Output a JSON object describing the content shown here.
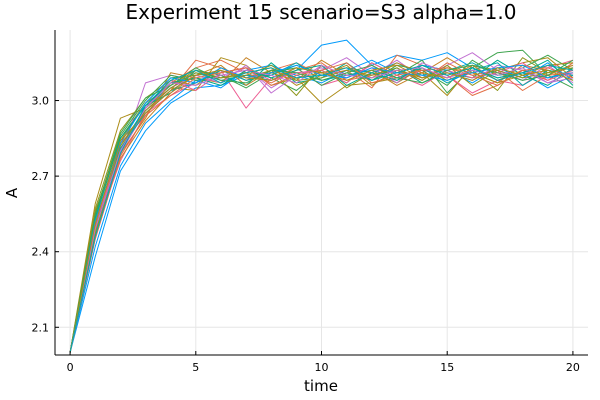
{
  "chart_data": {
    "type": "line",
    "title": "Experiment 15  scenario=S3  alpha=1.0",
    "xlabel": "time",
    "ylabel": "A",
    "xlim": [
      -0.6,
      20.6
    ],
    "ylim": [
      1.99,
      3.28
    ],
    "xticks": [
      0,
      5,
      10,
      15,
      20
    ],
    "yticks": [
      2.1,
      2.4,
      2.7,
      3.0
    ],
    "ytick_labels": [
      "2.1",
      "2.4",
      "2.7",
      "3.0"
    ],
    "grid": true,
    "legend": "none",
    "x": [
      0,
      1,
      2,
      3,
      4,
      5,
      6,
      7,
      8,
      9,
      10,
      11,
      12,
      13,
      14,
      15,
      16,
      17,
      18,
      19,
      20
    ],
    "palette": [
      "#009AFA",
      "#E26F46",
      "#3EA44E",
      "#C271D2",
      "#AC8D18",
      "#00A9AD",
      "#ED5E93",
      "#C68225",
      "#00A98D",
      "#8E971E"
    ],
    "series": [
      {
        "color": "#009AFA",
        "values": [
          2.0,
          2.38,
          2.72,
          2.88,
          2.99,
          3.05,
          3.06,
          3.1,
          3.08,
          3.12,
          3.22,
          3.24,
          3.14,
          3.18,
          3.16,
          3.19,
          3.13,
          3.09,
          3.11,
          3.05,
          3.1
        ]
      },
      {
        "color": "#E26F46",
        "values": [
          2.0,
          2.52,
          2.81,
          2.96,
          3.04,
          3.16,
          3.13,
          3.08,
          3.12,
          3.15,
          3.1,
          3.12,
          3.05,
          3.18,
          3.14,
          3.1,
          3.02,
          3.06,
          3.12,
          3.08,
          3.15
        ]
      },
      {
        "color": "#3EA44E",
        "values": [
          2.0,
          2.55,
          2.85,
          2.99,
          3.09,
          3.1,
          3.11,
          3.13,
          3.09,
          3.04,
          3.12,
          3.07,
          3.15,
          3.1,
          3.16,
          3.03,
          3.13,
          3.19,
          3.2,
          3.1,
          3.05
        ]
      },
      {
        "color": "#C271D2",
        "values": [
          2.0,
          2.45,
          2.78,
          3.07,
          3.1,
          3.08,
          3.09,
          3.13,
          3.05,
          3.11,
          3.12,
          3.17,
          3.1,
          3.16,
          3.09,
          3.14,
          3.19,
          3.12,
          3.08,
          3.14,
          3.07
        ]
      },
      {
        "color": "#AC8D18",
        "values": [
          2.0,
          2.59,
          2.93,
          2.97,
          3.05,
          3.04,
          3.17,
          3.14,
          3.06,
          3.09,
          2.99,
          3.06,
          3.07,
          3.09,
          3.11,
          3.02,
          3.14,
          3.12,
          3.15,
          3.17,
          3.09
        ]
      },
      {
        "color": "#00A9AD",
        "values": [
          2.0,
          2.5,
          2.82,
          2.97,
          3.06,
          3.11,
          3.08,
          3.1,
          3.1,
          3.14,
          3.11,
          3.13,
          3.11,
          3.15,
          3.1,
          3.12,
          3.15,
          3.1,
          3.11,
          3.09,
          3.12
        ]
      },
      {
        "color": "#ED5E93",
        "values": [
          2.0,
          2.48,
          2.76,
          2.95,
          3.02,
          3.07,
          3.12,
          2.97,
          3.09,
          3.13,
          3.06,
          3.09,
          3.14,
          3.08,
          3.12,
          3.1,
          3.03,
          3.08,
          3.06,
          3.13,
          3.16
        ]
      },
      {
        "color": "#C68225",
        "values": [
          2.0,
          2.53,
          2.79,
          2.93,
          3.11,
          3.09,
          3.07,
          3.17,
          3.11,
          3.08,
          3.16,
          3.1,
          3.12,
          3.06,
          3.11,
          3.17,
          3.11,
          3.07,
          3.14,
          3.12,
          3.1
        ]
      },
      {
        "color": "#00A98D",
        "values": [
          2.0,
          2.47,
          2.8,
          2.98,
          3.03,
          3.12,
          3.1,
          3.06,
          3.15,
          3.07,
          3.09,
          3.15,
          3.08,
          3.13,
          3.07,
          3.11,
          3.09,
          3.16,
          3.1,
          3.06,
          3.13
        ]
      },
      {
        "color": "#8E971E",
        "values": [
          2.0,
          2.57,
          2.88,
          3.01,
          3.08,
          3.06,
          3.13,
          3.09,
          3.12,
          3.02,
          3.14,
          3.05,
          3.11,
          3.07,
          3.13,
          3.08,
          3.12,
          3.04,
          3.17,
          3.11,
          3.14
        ]
      },
      {
        "color": "#009AFA",
        "values": [
          2.0,
          2.42,
          2.74,
          2.91,
          3.0,
          3.08,
          3.05,
          3.12,
          3.14,
          3.1,
          3.07,
          3.12,
          3.16,
          3.11,
          3.14,
          3.12,
          3.07,
          3.13,
          3.09,
          3.15,
          3.08
        ]
      },
      {
        "color": "#E26F46",
        "values": [
          2.0,
          2.5,
          2.83,
          2.94,
          3.07,
          3.13,
          3.16,
          3.11,
          3.07,
          3.12,
          3.15,
          3.08,
          3.1,
          3.12,
          3.08,
          3.15,
          3.1,
          3.12,
          3.04,
          3.1,
          3.11
        ]
      },
      {
        "color": "#3EA44E",
        "values": [
          2.0,
          2.54,
          2.86,
          3.0,
          3.1,
          3.08,
          3.1,
          3.05,
          3.11,
          3.13,
          3.06,
          3.11,
          3.08,
          3.14,
          3.12,
          3.06,
          3.16,
          3.1,
          3.13,
          3.18,
          3.12
        ]
      },
      {
        "color": "#C271D2",
        "values": [
          2.0,
          2.46,
          2.79,
          2.96,
          3.05,
          3.1,
          3.07,
          3.14,
          3.03,
          3.1,
          3.13,
          3.09,
          3.13,
          3.07,
          3.15,
          3.11,
          3.08,
          3.14,
          3.12,
          3.07,
          3.09
        ]
      },
      {
        "color": "#AC8D18",
        "values": [
          2.0,
          2.56,
          2.84,
          2.99,
          3.06,
          3.12,
          3.09,
          3.11,
          3.13,
          3.06,
          3.1,
          3.14,
          3.06,
          3.12,
          3.09,
          3.13,
          3.11,
          3.07,
          3.1,
          3.14,
          3.15
        ]
      },
      {
        "color": "#00A9AD",
        "values": [
          2.0,
          2.49,
          2.81,
          2.95,
          3.04,
          3.07,
          3.12,
          3.08,
          3.1,
          3.15,
          3.08,
          3.1,
          3.12,
          3.09,
          3.13,
          3.07,
          3.12,
          3.15,
          3.06,
          3.12,
          3.1
        ]
      },
      {
        "color": "#ED5E93",
        "values": [
          2.0,
          2.51,
          2.8,
          2.97,
          3.08,
          3.04,
          3.11,
          3.13,
          3.08,
          3.11,
          3.12,
          3.07,
          3.15,
          3.1,
          3.06,
          3.12,
          3.09,
          3.11,
          3.15,
          3.08,
          3.12
        ]
      },
      {
        "color": "#C68225",
        "values": [
          2.0,
          2.48,
          2.77,
          2.92,
          3.03,
          3.1,
          3.14,
          3.06,
          3.12,
          3.09,
          3.11,
          3.13,
          3.09,
          3.15,
          3.11,
          3.09,
          3.14,
          3.08,
          3.12,
          3.1,
          3.14
        ]
      },
      {
        "color": "#00A98D",
        "values": [
          2.0,
          2.53,
          2.85,
          2.98,
          3.07,
          3.09,
          3.06,
          3.12,
          3.09,
          3.12,
          3.14,
          3.06,
          3.11,
          3.08,
          3.14,
          3.1,
          3.13,
          3.09,
          3.11,
          3.16,
          3.06
        ]
      },
      {
        "color": "#8E971E",
        "values": [
          2.0,
          2.47,
          2.82,
          2.96,
          3.05,
          3.11,
          3.09,
          3.1,
          3.14,
          3.08,
          3.09,
          3.12,
          3.1,
          3.13,
          3.08,
          3.14,
          3.06,
          3.12,
          3.09,
          3.11,
          3.13
        ]
      },
      {
        "color": "#009AFA",
        "values": [
          2.0,
          2.52,
          2.83,
          2.99,
          3.09,
          3.07,
          3.13,
          3.09,
          3.11,
          3.14,
          3.1,
          3.09,
          3.13,
          3.11,
          3.1,
          3.08,
          3.11,
          3.13,
          3.14,
          3.09,
          3.11
        ]
      },
      {
        "color": "#E26F46",
        "values": [
          2.0,
          2.45,
          2.78,
          2.94,
          3.02,
          3.09,
          3.11,
          3.13,
          3.06,
          3.1,
          3.12,
          3.15,
          3.07,
          3.1,
          3.12,
          3.13,
          3.1,
          3.06,
          3.12,
          3.13,
          3.09
        ]
      },
      {
        "color": "#3EA44E",
        "values": [
          2.0,
          2.55,
          2.87,
          3.01,
          3.06,
          3.13,
          3.08,
          3.07,
          3.12,
          3.11,
          3.08,
          3.11,
          3.14,
          3.09,
          3.07,
          3.12,
          3.14,
          3.11,
          3.08,
          3.1,
          3.16
        ]
      },
      {
        "color": "#C271D2",
        "values": [
          2.0,
          2.49,
          2.8,
          2.97,
          3.07,
          3.06,
          3.1,
          3.12,
          3.1,
          3.07,
          3.14,
          3.1,
          3.09,
          3.12,
          3.13,
          3.09,
          3.12,
          3.1,
          3.13,
          3.07,
          3.11
        ]
      },
      {
        "color": "#AC8D18",
        "values": [
          2.0,
          2.51,
          2.84,
          2.95,
          3.04,
          3.1,
          3.12,
          3.09,
          3.08,
          3.13,
          3.11,
          3.08,
          3.12,
          3.14,
          3.09,
          3.11,
          3.08,
          3.13,
          3.1,
          3.12,
          3.08
        ]
      },
      {
        "color": "#00A9AD",
        "values": [
          2.0,
          2.46,
          2.79,
          2.98,
          3.08,
          3.12,
          3.07,
          3.11,
          3.13,
          3.09,
          3.1,
          3.13,
          3.08,
          3.11,
          3.14,
          3.1,
          3.13,
          3.08,
          3.11,
          3.14,
          3.12
        ]
      }
    ]
  }
}
